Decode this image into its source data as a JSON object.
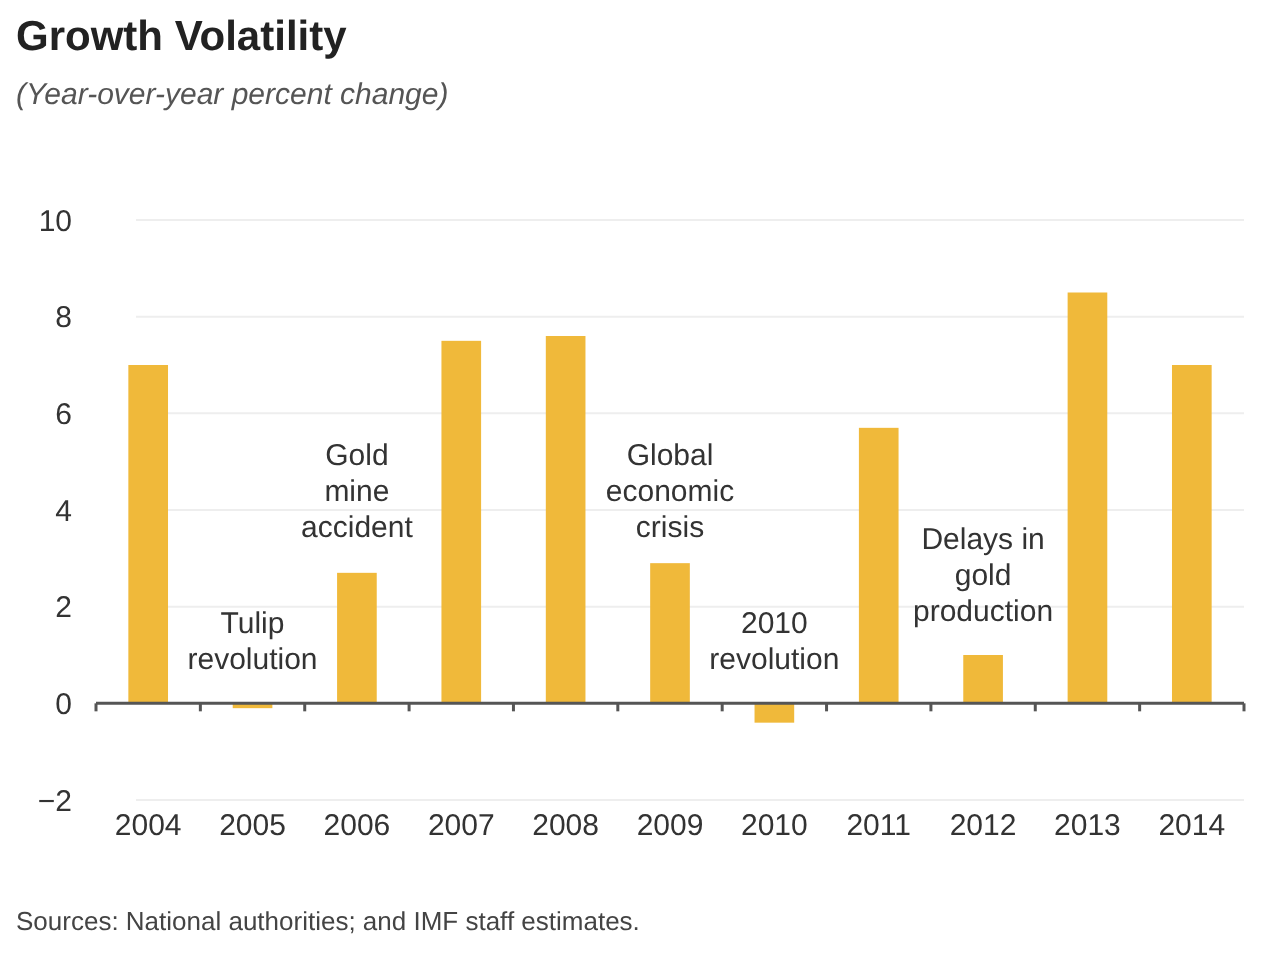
{
  "chart_data": {
    "type": "bar",
    "title": "Growth Volatility",
    "subtitle": "(Year-over-year percent change)",
    "categories": [
      "2004",
      "2005",
      "2006",
      "2007",
      "2008",
      "2009",
      "2010",
      "2011",
      "2012",
      "2013",
      "2014"
    ],
    "values": [
      7.0,
      -0.1,
      2.7,
      7.5,
      7.6,
      2.9,
      -0.4,
      5.7,
      1.0,
      8.5,
      7.0
    ],
    "color": "#f0b93a",
    "ylim": [
      -2,
      10
    ],
    "yticks": [
      -2,
      0,
      2,
      4,
      6,
      8,
      10
    ],
    "grid": "y",
    "annotations": [
      "Tulip\nrevolution",
      "Gold\nmine\naccident",
      "Global\neconomic\ncrisis",
      "2010\nrevolution",
      "Delays in\ngold\nproduction",
      "Sources: National authorities; and IMF staff estimates."
    ]
  }
}
